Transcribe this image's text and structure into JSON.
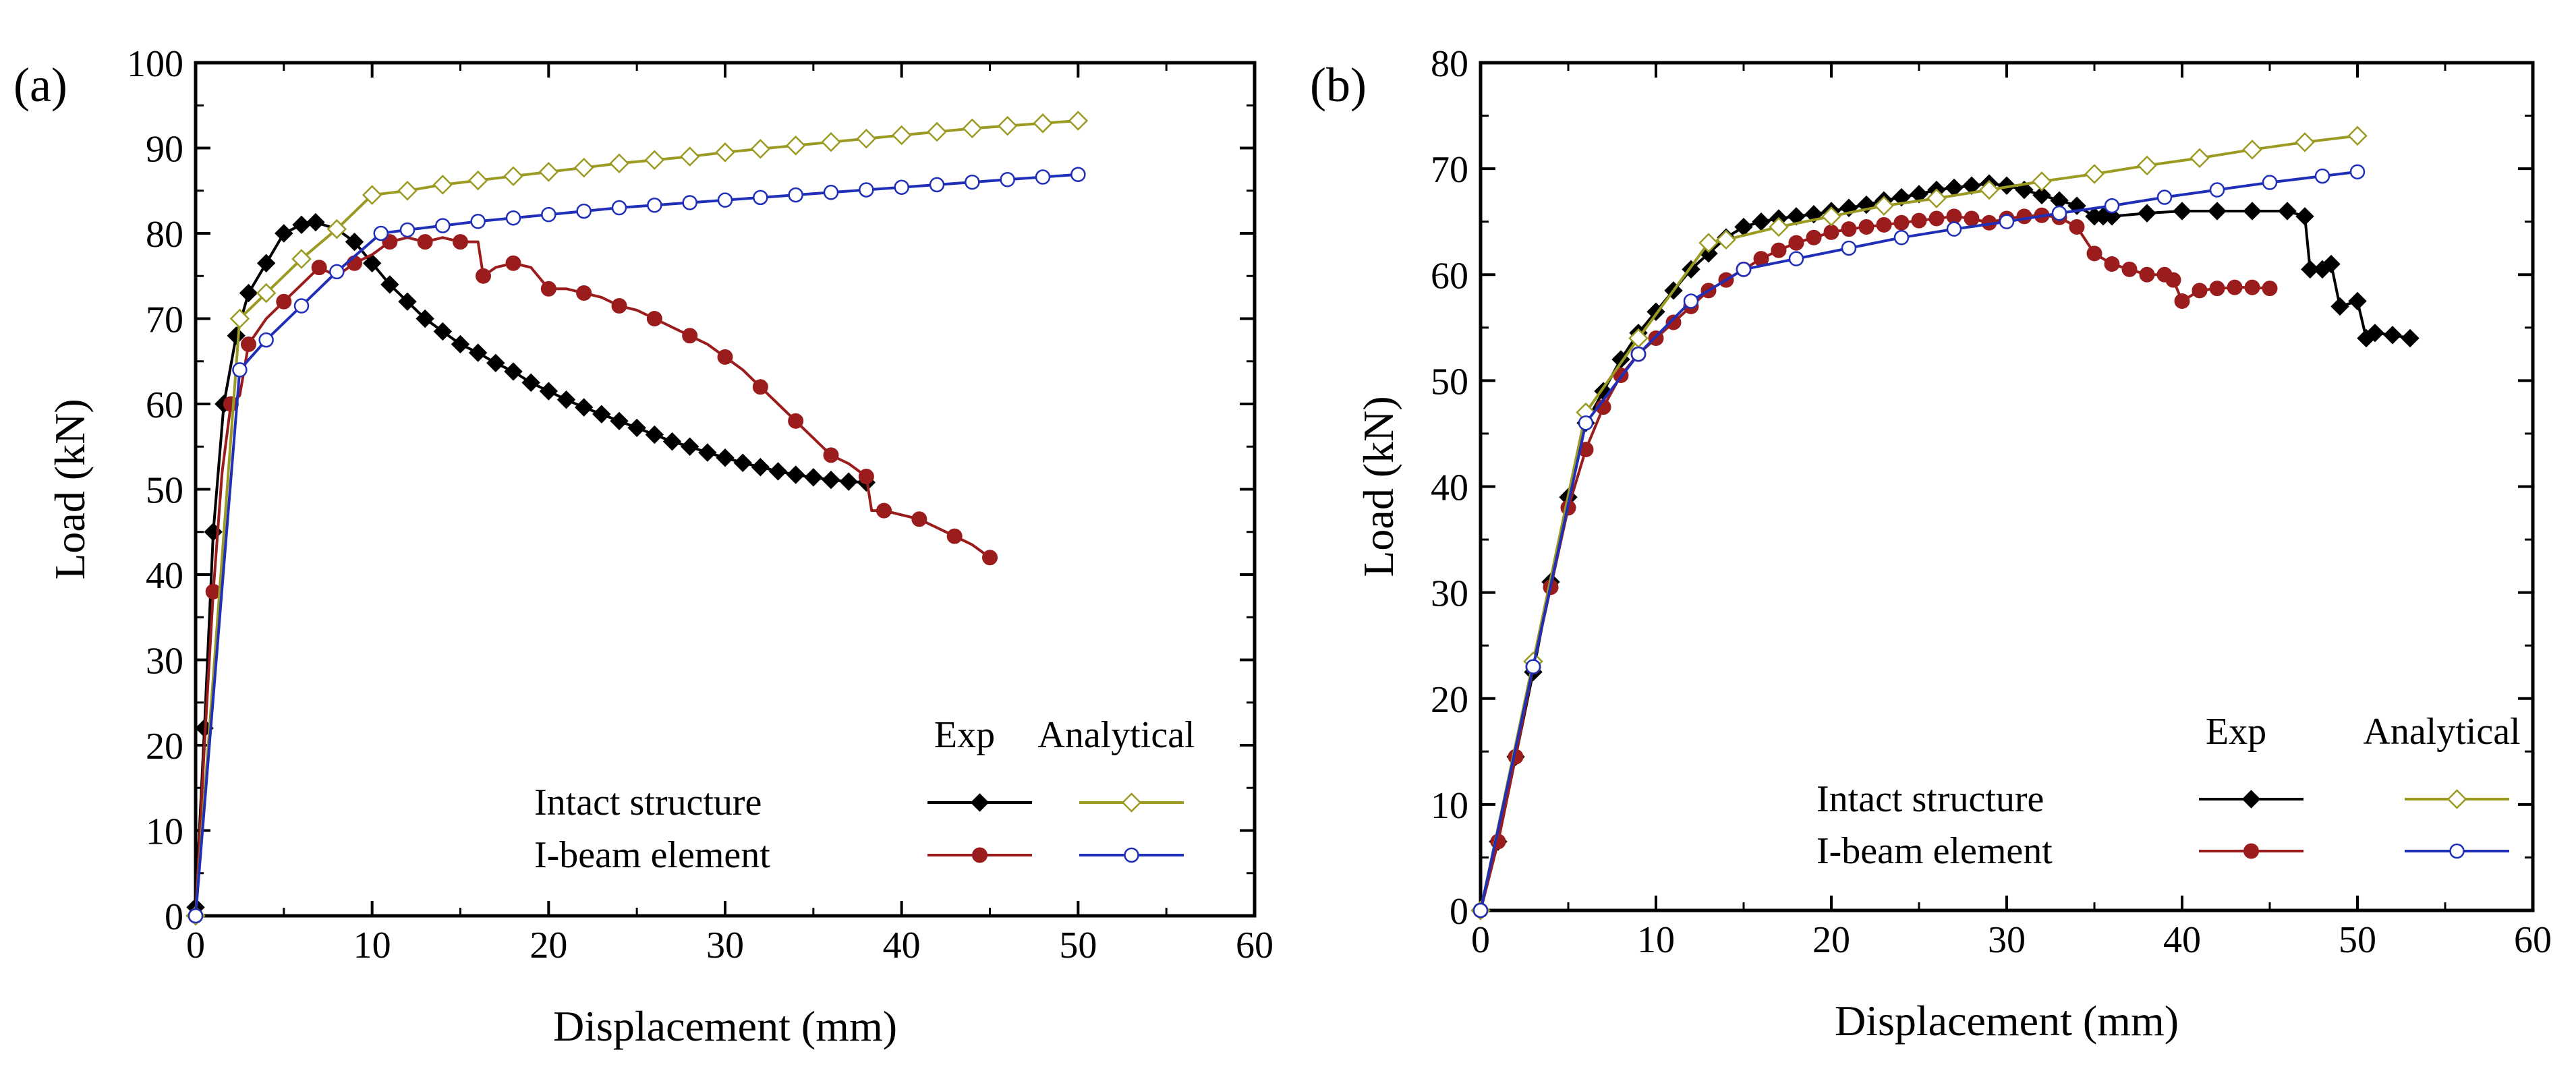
{
  "chart_data": [
    {
      "type": "line",
      "panel_label": "(a)",
      "xlabel": "Displacement (mm)",
      "ylabel": "Load (kN)",
      "xlim": [
        0,
        60
      ],
      "ylim": [
        0,
        100
      ],
      "xticks": [
        0,
        10,
        20,
        30,
        40,
        50,
        60
      ],
      "yticks": [
        0,
        10,
        20,
        30,
        40,
        50,
        60,
        70,
        80,
        90,
        100
      ],
      "legend": {
        "position": "bottom-right",
        "col_headers": [
          "Exp",
          "Analytical"
        ],
        "row_labels": [
          "Intact structure",
          "I-beam element"
        ]
      },
      "series": [
        {
          "name": "Intact structure - Exp",
          "color": "#000000",
          "marker": "diamond-filled",
          "marker_every": 1,
          "x": [
            0,
            0.5,
            1,
            1.6,
            2.3,
            3,
            4,
            5,
            6,
            6.8,
            8,
            9,
            10,
            11,
            12,
            13,
            14,
            15,
            16,
            17,
            18,
            19,
            20,
            21,
            22,
            23,
            24,
            25,
            26,
            27,
            28,
            29,
            30,
            31,
            32,
            33,
            34,
            35,
            36,
            37,
            38
          ],
          "y": [
            1,
            22,
            45,
            60,
            68,
            73,
            76.5,
            80,
            81,
            81.3,
            80.5,
            79,
            76.5,
            74,
            72,
            70,
            68.5,
            67,
            66,
            64.8,
            63.8,
            62.5,
            61.5,
            60.5,
            59.6,
            58.8,
            58,
            57.2,
            56.4,
            55.6,
            55,
            54.3,
            53.7,
            53.1,
            52.6,
            52.1,
            51.7,
            51.4,
            51.1,
            50.9,
            50.8
          ]
        },
        {
          "name": "I-beam element - Exp",
          "color": "#9b1c1c",
          "marker": "circle-filled",
          "marker_every": 2,
          "x": [
            0,
            0.5,
            1,
            1.5,
            2,
            2.5,
            3,
            4,
            5,
            6,
            7,
            8,
            9,
            10,
            11,
            12,
            13,
            14,
            15,
            16,
            16.3,
            17,
            18,
            19,
            20,
            21,
            22,
            23,
            24,
            25,
            26,
            27,
            28,
            29,
            30,
            31,
            32,
            33,
            34,
            35,
            36,
            37,
            38,
            38.3,
            39,
            40,
            41,
            42,
            43,
            44,
            45
          ],
          "y": [
            0,
            20,
            38,
            52,
            60,
            61,
            67,
            70,
            72,
            74,
            76,
            75,
            76.5,
            77.5,
            79,
            79.5,
            79,
            79.5,
            79,
            79,
            75,
            76,
            76.5,
            76,
            73.5,
            73.5,
            73,
            72.5,
            71.5,
            71,
            70,
            69,
            68,
            67,
            65.5,
            64,
            62,
            60,
            58,
            56,
            54,
            53,
            51.5,
            47.5,
            47.5,
            47,
            46.5,
            45.5,
            44.5,
            43.5,
            42
          ]
        },
        {
          "name": "Intact structure - Analytical",
          "color": "#9b9a23",
          "marker": "diamond-open",
          "marker_every": 1,
          "x": [
            0,
            2.5,
            4,
            6,
            8,
            10,
            12,
            14,
            16,
            18,
            20,
            22,
            24,
            26,
            28,
            30,
            32,
            34,
            36,
            38,
            40,
            42,
            44,
            46,
            48,
            50
          ],
          "y": [
            0,
            70,
            73,
            77,
            80.5,
            84.5,
            85,
            85.7,
            86.2,
            86.7,
            87.2,
            87.7,
            88.2,
            88.6,
            89,
            89.5,
            89.9,
            90.3,
            90.7,
            91.1,
            91.5,
            91.9,
            92.3,
            92.6,
            92.9,
            93.2
          ]
        },
        {
          "name": "I-beam element - Analytical",
          "color": "#1f2fb8",
          "marker": "circle-open",
          "marker_every": 1,
          "x": [
            0,
            2.5,
            4,
            6,
            8,
            10.5,
            12,
            14,
            16,
            18,
            20,
            22,
            24,
            26,
            28,
            30,
            32,
            34,
            36,
            38,
            40,
            42,
            44,
            46,
            48,
            50
          ],
          "y": [
            0,
            64,
            67.5,
            71.5,
            75.5,
            80,
            80.4,
            80.9,
            81.4,
            81.8,
            82.2,
            82.6,
            83,
            83.3,
            83.6,
            83.9,
            84.2,
            84.5,
            84.8,
            85.1,
            85.4,
            85.7,
            86,
            86.3,
            86.6,
            86.9
          ]
        }
      ]
    },
    {
      "type": "line",
      "panel_label": "(b)",
      "xlabel": "Displacement (mm)",
      "ylabel": "Load (kN)",
      "xlim": [
        0,
        60
      ],
      "ylim": [
        0,
        80
      ],
      "xticks": [
        0,
        10,
        20,
        30,
        40,
        50,
        60
      ],
      "yticks": [
        0,
        10,
        20,
        30,
        40,
        50,
        60,
        70,
        80
      ],
      "legend": {
        "position": "bottom-right",
        "col_headers": [
          "Exp",
          "Analytical"
        ],
        "row_labels": [
          "Intact structure",
          "I-beam element"
        ]
      },
      "series": [
        {
          "name": "Intact structure - Exp",
          "color": "#000000",
          "marker": "diamond-filled",
          "marker_every": 1,
          "x": [
            0,
            1,
            2,
            3,
            4,
            5,
            6,
            7,
            8,
            9,
            10,
            11,
            12,
            13,
            14,
            15,
            16,
            17,
            18,
            19,
            20,
            21,
            22,
            23,
            24,
            25,
            26,
            27,
            28,
            29,
            30,
            31,
            32,
            33,
            34,
            35,
            35.5,
            36,
            38,
            40,
            42,
            44,
            46,
            47,
            47.3,
            48,
            48.5,
            49,
            50,
            50.5,
            51,
            52,
            53
          ],
          "y": [
            0,
            6.5,
            14.5,
            22.5,
            31,
            39,
            46,
            49,
            52,
            54.5,
            56.5,
            58.5,
            60.5,
            62,
            63.5,
            64.5,
            65,
            65.3,
            65.5,
            65.7,
            66,
            66.3,
            66.6,
            67,
            67.3,
            67.6,
            68,
            68.2,
            68.4,
            68.6,
            68.4,
            68,
            67.5,
            67,
            66.5,
            65.5,
            65.5,
            65.5,
            65.8,
            66,
            66,
            66,
            66,
            65.5,
            60.5,
            60.5,
            61,
            57,
            57.5,
            54,
            54.5,
            54.3,
            54
          ]
        },
        {
          "name": "I-beam element - Exp",
          "color": "#9b1c1c",
          "marker": "circle-filled",
          "marker_every": 1,
          "x": [
            0,
            1,
            2,
            3,
            4,
            5,
            6,
            7,
            8,
            9,
            10,
            11,
            12,
            13,
            14,
            15,
            16,
            17,
            18,
            19,
            20,
            21,
            22,
            23,
            24,
            25,
            26,
            27,
            28,
            29,
            30,
            31,
            32,
            33,
            34,
            35,
            36,
            37,
            38,
            39,
            39.5,
            40,
            41,
            42,
            43,
            44,
            45
          ],
          "y": [
            0,
            6.5,
            14.5,
            23,
            30.5,
            38,
            43.5,
            47.5,
            50.5,
            52.5,
            54,
            55.5,
            57,
            58.5,
            59.5,
            60.5,
            61.5,
            62.3,
            63,
            63.5,
            64,
            64.3,
            64.5,
            64.7,
            64.9,
            65.1,
            65.3,
            65.5,
            65.3,
            64.9,
            65.3,
            65.5,
            65.6,
            65.4,
            64.5,
            62,
            61,
            60.5,
            60,
            60,
            59.5,
            57.5,
            58.5,
            58.7,
            58.8,
            58.8,
            58.7
          ]
        },
        {
          "name": "Intact structure - Analytical",
          "color": "#9b9a23",
          "marker": "diamond-open",
          "marker_every": 1,
          "x": [
            0,
            3,
            6,
            9,
            13,
            14,
            17,
            20,
            23,
            26,
            29,
            32,
            35,
            38,
            41,
            44,
            47,
            50
          ],
          "y": [
            0,
            23.5,
            47,
            54,
            63,
            63.3,
            64.5,
            65.5,
            66.5,
            67.2,
            68,
            68.8,
            69.5,
            70.3,
            71,
            71.8,
            72.5,
            73.1
          ]
        },
        {
          "name": "I-beam element - Analytical",
          "color": "#1f2fb8",
          "marker": "circle-open",
          "marker_every": 1,
          "x": [
            0,
            3,
            6,
            9,
            12,
            15,
            18,
            21,
            24,
            27,
            30,
            33,
            36,
            39,
            42,
            45,
            48,
            50
          ],
          "y": [
            0,
            23,
            46,
            52.5,
            57.5,
            60.5,
            61.5,
            62.5,
            63.5,
            64.3,
            65,
            65.8,
            66.5,
            67.3,
            68,
            68.7,
            69.3,
            69.7
          ]
        }
      ]
    }
  ]
}
